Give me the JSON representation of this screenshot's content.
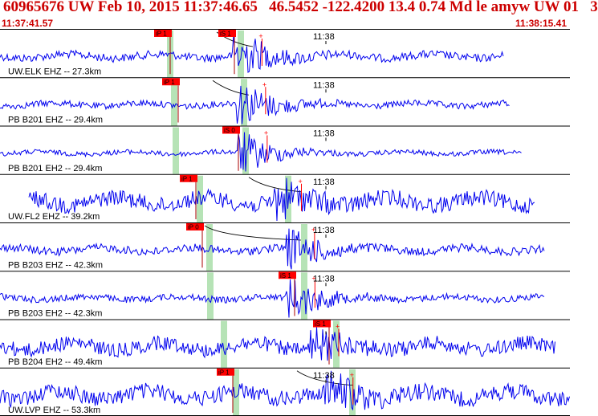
{
  "header": {
    "title": "60965676 UW Feb 10, 2015 11:37:46.65   46.5452 -122.4200 13.4 0.74 Md le amyw UW 01   3",
    "time_start": "11:37:41.57",
    "time_end": "11:38:15.41"
  },
  "colors": {
    "trace": "#0000ee",
    "pick_box": "#ff0000",
    "pick_band": "#b6e3b6",
    "header_text": "#cc0000",
    "divider": "#000000"
  },
  "traces": [
    {
      "id": "elk",
      "label": "UW.ELK EHZ -- 27.3km",
      "minute_label": "11:38",
      "picks": [
        {
          "label": "iP 1",
          "kind": "P"
        },
        {
          "label": "iS 1",
          "kind": "S"
        }
      ],
      "amp": 5,
      "burst": 30,
      "onset": 0.42,
      "start": 0.0,
      "end": 0.885
    },
    {
      "id": "b201z",
      "label": "PB B201 EHZ -- 29.4km",
      "minute_label": "11:38",
      "picks": [
        {
          "label": "iP 1",
          "kind": "P"
        }
      ],
      "amp": 4,
      "burst": 28,
      "onset": 0.43,
      "start": 0.0,
      "end": 0.895
    },
    {
      "id": "b201e",
      "label": "PB B201 EH2 -- 29.4km",
      "minute_label": "11:38",
      "picks": [
        {
          "label": "iS 0",
          "kind": "S"
        }
      ],
      "amp": 3,
      "burst": 26,
      "onset": 0.43,
      "start": 0.0,
      "end": 0.915
    },
    {
      "id": "fl2",
      "label": "UW.FL2 EHZ -- 39.2km",
      "minute_label": "11:38",
      "picks": [
        {
          "label": "iP 1",
          "kind": "P"
        }
      ],
      "amp": 10,
      "burst": 22,
      "onset": 0.515,
      "start": 0.05,
      "end": 0.94
    },
    {
      "id": "b203z",
      "label": "PB B203 EHZ -- 42.3km",
      "minute_label": "11:38",
      "picks": [
        {
          "label": "iP 0",
          "kind": "P"
        }
      ],
      "amp": 5,
      "burst": 24,
      "onset": 0.53,
      "start": 0.0,
      "end": 0.955
    },
    {
      "id": "b203e",
      "label": "PB B203 EH2 -- 42.3km",
      "minute_label": "11:38",
      "picks": [
        {
          "label": "iS 1",
          "kind": "S"
        }
      ],
      "amp": 4,
      "burst": 26,
      "onset": 0.53,
      "start": 0.0,
      "end": 0.955
    },
    {
      "id": "b204e",
      "label": "PB B204 EH2 -- 49.4km",
      "minute_label": "",
      "picks": [
        {
          "label": "iS 1",
          "kind": "S"
        }
      ],
      "amp": 9,
      "burst": 18,
      "onset": 0.59,
      "start": 0.0,
      "end": 0.975
    },
    {
      "id": "lvp",
      "label": "UW.LVP EHZ -- 53.3km",
      "minute_label": "11:38",
      "picks": [
        {
          "label": "iP 1",
          "kind": "P"
        }
      ],
      "amp": 10,
      "burst": 22,
      "onset": 0.42,
      "start": 0.0,
      "end": 1.0
    }
  ]
}
